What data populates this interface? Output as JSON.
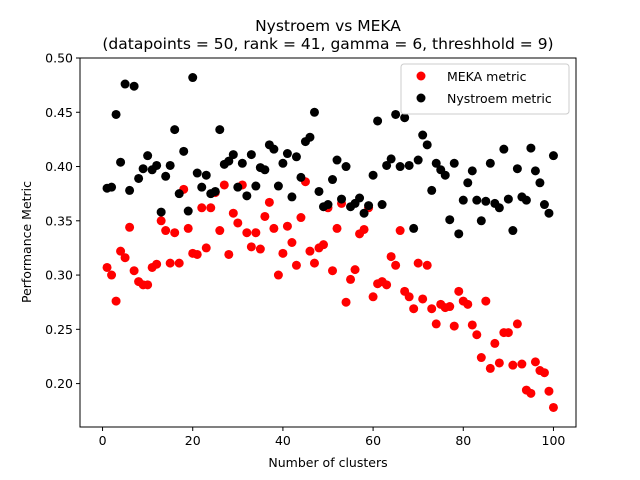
{
  "chart_data": {
    "type": "scatter",
    "title": "Nystroem vs MEKA",
    "subtitle": "(datapoints = 50, rank = 41, gamma = 6, threshhold = 9)",
    "xlabel": "Number of clusters",
    "ylabel": "Performance Metric",
    "xlim": [
      -5,
      105
    ],
    "ylim": [
      0.16,
      0.5
    ],
    "xticks": [
      "0",
      "20",
      "40",
      "60",
      "80",
      "100"
    ],
    "yticks": [
      "0.20",
      "0.25",
      "0.30",
      "0.35",
      "0.40",
      "0.45",
      "0.50"
    ],
    "grid": false,
    "legend_position": "top-right",
    "x": [
      1,
      2,
      3,
      4,
      5,
      6,
      7,
      8,
      9,
      10,
      11,
      12,
      13,
      14,
      15,
      16,
      17,
      18,
      19,
      20,
      21,
      22,
      23,
      24,
      25,
      26,
      27,
      28,
      29,
      30,
      31,
      32,
      33,
      34,
      35,
      36,
      37,
      38,
      39,
      40,
      41,
      42,
      43,
      44,
      45,
      46,
      47,
      48,
      49,
      50,
      51,
      52,
      53,
      54,
      55,
      56,
      57,
      58,
      59,
      60,
      61,
      62,
      63,
      64,
      65,
      66,
      67,
      68,
      69,
      70,
      71,
      72,
      73,
      74,
      75,
      76,
      77,
      78,
      79,
      80,
      81,
      82,
      83,
      84,
      85,
      86,
      87,
      88,
      89,
      90,
      91,
      92,
      93,
      94,
      95,
      96,
      97,
      98,
      99,
      100
    ],
    "series": [
      {
        "name": "MEKA metric",
        "color": "#ff0000",
        "values": [
          0.307,
          0.3,
          0.276,
          0.322,
          0.316,
          0.344,
          0.304,
          0.294,
          0.291,
          0.291,
          0.307,
          0.31,
          0.35,
          0.341,
          0.311,
          0.339,
          0.311,
          0.379,
          0.343,
          0.32,
          0.319,
          0.362,
          0.325,
          0.362,
          0.376,
          0.341,
          0.383,
          0.319,
          0.357,
          0.348,
          0.383,
          0.339,
          0.326,
          0.339,
          0.324,
          0.354,
          0.367,
          0.343,
          0.3,
          0.32,
          0.345,
          0.33,
          0.309,
          0.353,
          0.386,
          0.322,
          0.311,
          0.325,
          0.328,
          0.362,
          0.304,
          0.343,
          0.366,
          0.275,
          0.296,
          0.305,
          0.338,
          0.342,
          0.362,
          0.28,
          0.292,
          0.294,
          0.291,
          0.317,
          0.309,
          0.341,
          0.285,
          0.28,
          0.269,
          0.311,
          0.278,
          0.309,
          0.269,
          0.255,
          0.273,
          0.27,
          0.271,
          0.253,
          0.285,
          0.276,
          0.273,
          0.254,
          0.245,
          0.224,
          0.276,
          0.214,
          0.237,
          0.219,
          0.247,
          0.247,
          0.217,
          0.255,
          0.218,
          0.194,
          0.191,
          0.22,
          0.212,
          0.21,
          0.193,
          0.178
        ]
      },
      {
        "name": "Nystroem metric",
        "color": "#000000",
        "values": [
          0.38,
          0.381,
          0.448,
          0.404,
          0.476,
          0.378,
          0.474,
          0.389,
          0.398,
          0.41,
          0.397,
          0.401,
          0.358,
          0.391,
          0.401,
          0.434,
          0.375,
          0.414,
          0.359,
          0.482,
          0.394,
          0.381,
          0.392,
          0.375,
          0.377,
          0.434,
          0.402,
          0.405,
          0.411,
          0.381,
          0.403,
          0.373,
          0.411,
          0.382,
          0.399,
          0.397,
          0.42,
          0.416,
          0.382,
          0.403,
          0.412,
          0.372,
          0.409,
          0.39,
          0.423,
          0.427,
          0.45,
          0.377,
          0.363,
          0.365,
          0.388,
          0.406,
          0.37,
          0.4,
          0.363,
          0.366,
          0.371,
          0.357,
          0.364,
          0.392,
          0.442,
          0.365,
          0.401,
          0.407,
          0.448,
          0.4,
          0.445,
          0.401,
          0.343,
          0.406,
          0.429,
          0.42,
          0.378,
          0.403,
          0.397,
          0.392,
          0.351,
          0.403,
          0.338,
          0.369,
          0.385,
          0.396,
          0.369,
          0.35,
          0.368,
          0.403,
          0.366,
          0.362,
          0.416,
          0.37,
          0.341,
          0.398,
          0.372,
          0.369,
          0.417,
          0.396,
          0.385,
          0.365,
          0.357,
          0.41
        ]
      }
    ]
  }
}
